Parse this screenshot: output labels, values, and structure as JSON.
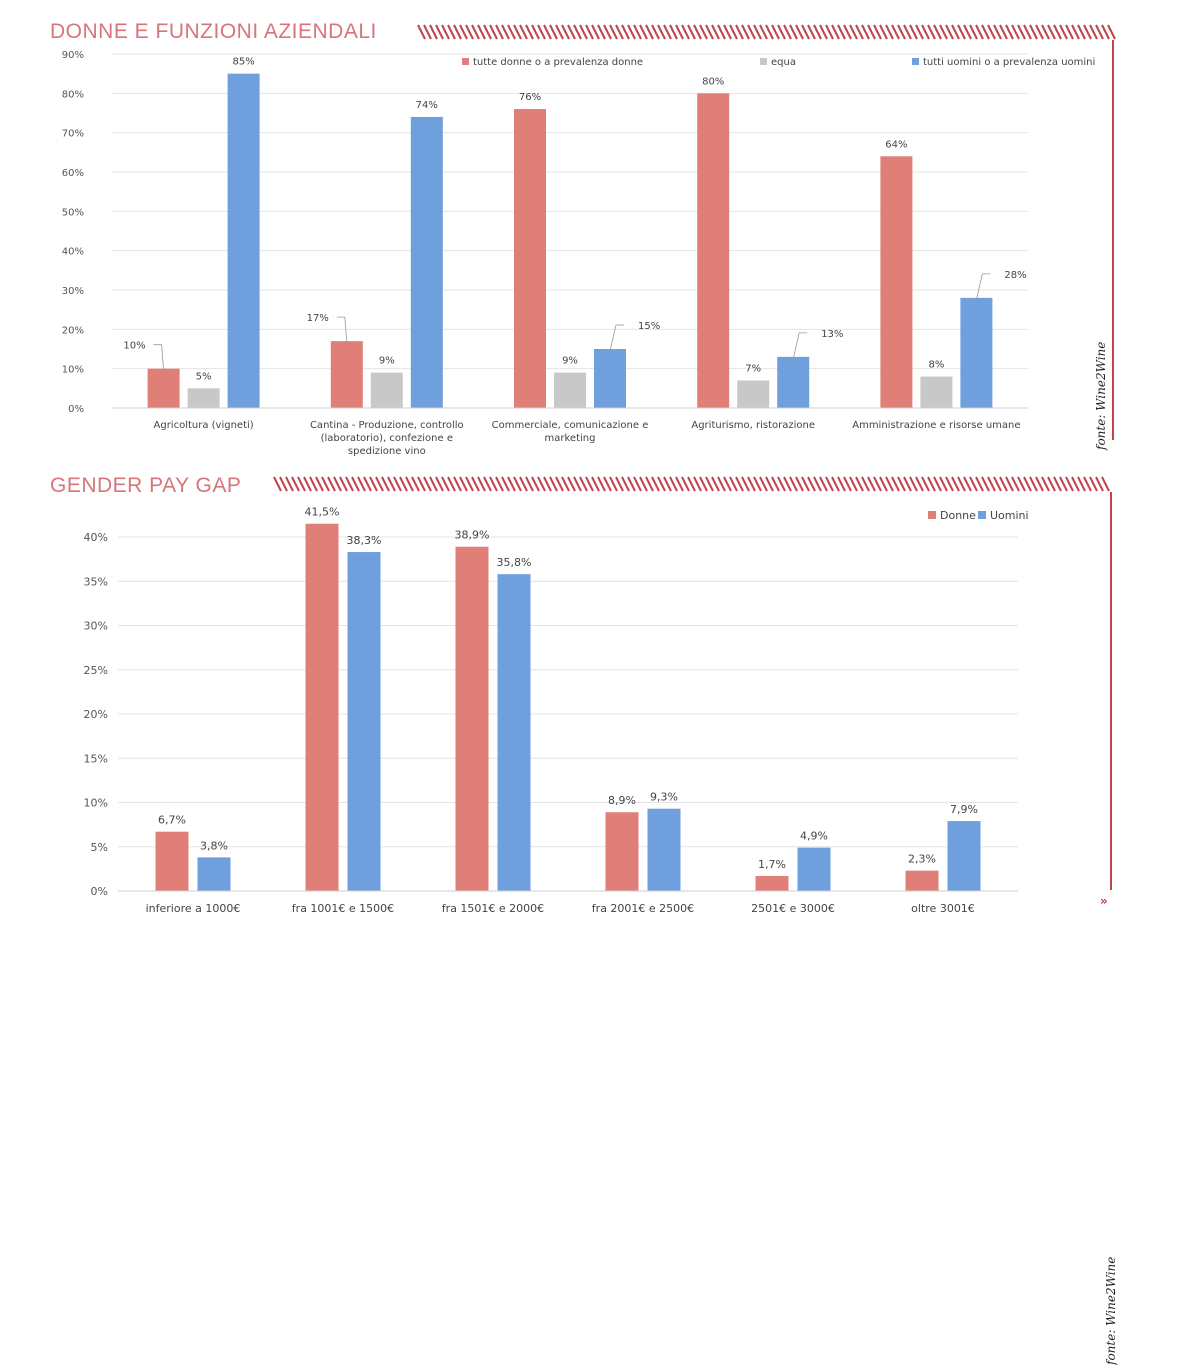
{
  "sections": [
    {
      "title": "DONNE E FUNZIONI AZIENDALI",
      "source": "fonte: Wine2Wine"
    },
    {
      "title": "GENDER PAY GAP",
      "source": "fonte: Wine2Wine"
    }
  ],
  "colors": {
    "accent": "#c0444b",
    "title": "#d8757b",
    "donne": "#e07f78",
    "equa": "#c8c8c8",
    "uomini": "#6f9fdc",
    "grid": "#e4e4e4"
  },
  "chart_data": [
    {
      "type": "bar",
      "title": "DONNE E FUNZIONI AZIENDALI",
      "categories": [
        [
          "Agricoltura (vigneti)"
        ],
        [
          "Cantina - Produzione, controllo",
          "(laboratorio), confezione e",
          "spedizione vino"
        ],
        [
          "Commerciale, comunicazione e",
          "marketing"
        ],
        [
          "Agriturismo, ristorazione"
        ],
        [
          "Amministrazione e risorse umane"
        ]
      ],
      "series": [
        {
          "name": "tutte donne o a prevalenza donne",
          "values": [
            10,
            17,
            76,
            80,
            64
          ],
          "labels": [
            "10%",
            "17%",
            "76%",
            "80%",
            "64%"
          ]
        },
        {
          "name": "equa",
          "values": [
            5,
            9,
            9,
            7,
            8
          ],
          "labels": [
            "5%",
            "9%",
            "9%",
            "7%",
            "8%"
          ]
        },
        {
          "name": "tutti uomini o a prevalenza uomini",
          "values": [
            85,
            74,
            15,
            13,
            28
          ],
          "labels": [
            "85%",
            "74%",
            "15%",
            "13%",
            "28%"
          ]
        }
      ],
      "yticks": [
        "0%",
        "10%",
        "20%",
        "30%",
        "40%",
        "50%",
        "60%",
        "70%",
        "80%",
        "90%"
      ],
      "ylim": [
        0,
        90
      ],
      "legend_position": "top"
    },
    {
      "type": "bar",
      "title": "GENDER PAY GAP",
      "categories": [
        [
          "inferiore a 1000€"
        ],
        [
          "fra 1001€ e 1500€"
        ],
        [
          "fra 1501€ e 2000€"
        ],
        [
          "fra 2001€ e 2500€"
        ],
        [
          "2501€ e 3000€"
        ],
        [
          "oltre 3001€"
        ]
      ],
      "series": [
        {
          "name": "Donne",
          "values": [
            6.7,
            41.5,
            38.9,
            8.9,
            1.7,
            2.3
          ],
          "labels": [
            "6,7%",
            "41,5%",
            "38,9%",
            "8,9%",
            "1,7%",
            "2,3%"
          ]
        },
        {
          "name": "Uomini",
          "values": [
            3.8,
            38.3,
            35.8,
            9.3,
            4.9,
            7.9
          ],
          "labels": [
            "3,8%",
            "38,3%",
            "35,8%",
            "9,3%",
            "4,9%",
            "7,9%"
          ]
        }
      ],
      "yticks": [
        "0%",
        "5%",
        "10%",
        "15%",
        "20%",
        "25%",
        "30%",
        "35%",
        "40%"
      ],
      "ylim": [
        0,
        40
      ],
      "legend_position": "top-right"
    }
  ]
}
